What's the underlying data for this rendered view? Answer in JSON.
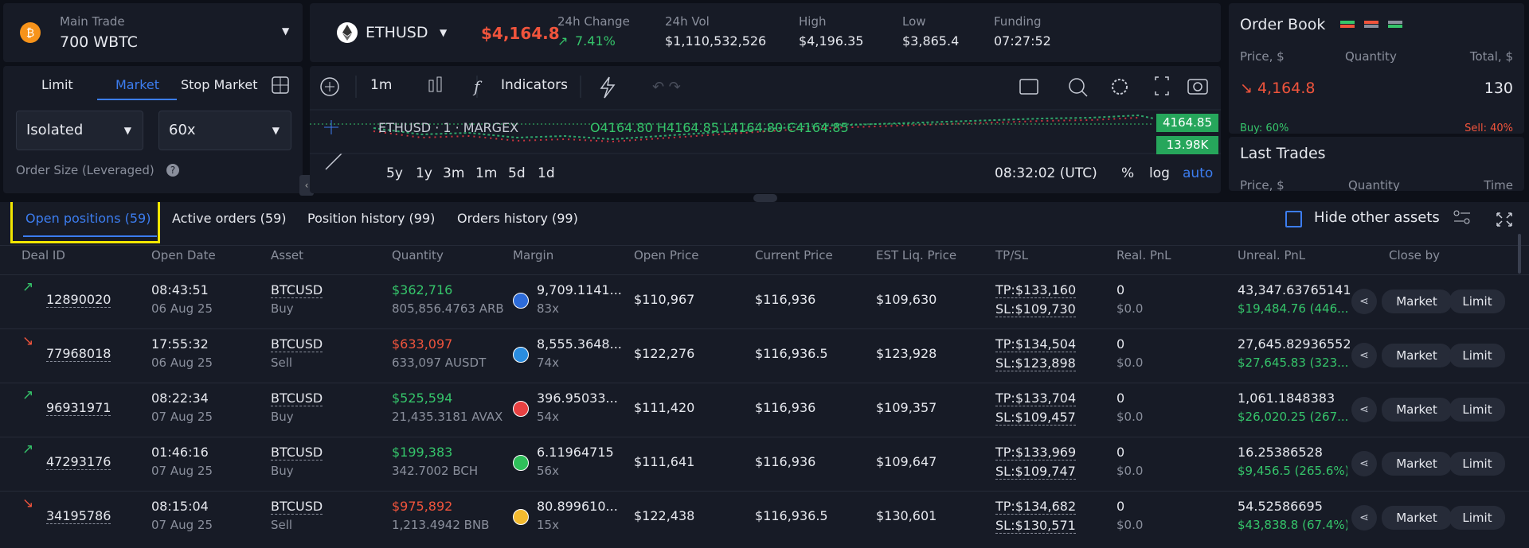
{
  "header": {
    "account_label": "Main Trade",
    "account_value": "700 WBTC",
    "symbol": "ETHUSD",
    "price": "$4,164.8",
    "stats": [
      {
        "label": "24h Change",
        "value": "7.41%"
      },
      {
        "label": "24h Vol",
        "value": "$1,110,532,526"
      },
      {
        "label": "High",
        "value": "$4,196.35"
      },
      {
        "label": "Low",
        "value": "$3,865.4"
      },
      {
        "label": "Funding",
        "value": "07:27:52"
      }
    ]
  },
  "order_form": {
    "tabs": [
      "Limit",
      "Market",
      "Stop Market"
    ],
    "margin_mode": "Isolated",
    "leverage": "60x",
    "order_size_label": "Order Size (Leveraged)"
  },
  "chart": {
    "interval": "1m",
    "indicators": "Indicators",
    "legend_symbol": "ETHUSD · 1 · MARGEX",
    "ohlc": "O4164.80 H4164.85 L4164.80 C4164.85",
    "price_tag": "4164.85",
    "volume_tag": "13.98K",
    "ranges": [
      "5y",
      "1y",
      "3m",
      "1m",
      "5d",
      "1d"
    ],
    "clock": "08:32:02 (UTC)",
    "scale_options": [
      "%",
      "log",
      "auto"
    ]
  },
  "order_book": {
    "title": "Order Book",
    "columns": [
      "Price, $",
      "Quantity",
      "Total, $"
    ],
    "last_price": "4,164.8",
    "last_total": "130",
    "buy": "Buy: 60%",
    "sell": "Sell: 40%",
    "last_trades": {
      "title": "Last Trades",
      "columns": [
        "Price, $",
        "Quantity",
        "Time"
      ]
    }
  },
  "position_tabs": [
    "Open positions (59)",
    "Active orders (59)",
    "Position history (99)",
    "Orders history (99)"
  ],
  "hide_other_assets": "Hide other assets",
  "table": {
    "columns": [
      "Deal ID",
      "Open Date",
      "Asset",
      "Quantity",
      "Margin",
      "Open Price",
      "Current Price",
      "EST Liq. Price",
      "TP/SL",
      "Real. PnL",
      "Unreal. PnL",
      "Close by"
    ],
    "actions": [
      "Market",
      "Limit"
    ],
    "rows": [
      {
        "deal_id": "12890020",
        "time": "08:43:51",
        "date": "06 Aug 25",
        "asset": "BTCUSD",
        "side": "Buy",
        "quantity_usd": "$362,716",
        "quantity_coin": "805,856.4763 ARB",
        "margin": "9,709.1141...",
        "leverage": "83x",
        "open_price": "$110,967",
        "current_price": "$116,936",
        "liq_price": "$109,630",
        "tp": "TP:$133,160",
        "sl": "SL:$109,730",
        "real_pnl": "0",
        "real_pnl_usd": "$0.0",
        "unreal_pnl": "43,347.63765141",
        "unreal_pnl_usd": "$19,484.76 (446...."
      },
      {
        "deal_id": "77968018",
        "time": "17:55:32",
        "date": "06 Aug 25",
        "asset": "BTCUSD",
        "side": "Sell",
        "quantity_usd": "$633,097",
        "quantity_coin": "633,097 AUSDT",
        "margin": "8,555.3648...",
        "leverage": "74x",
        "open_price": "$122,276",
        "current_price": "$116,936.5",
        "liq_price": "$123,928",
        "tp": "TP:$134,504",
        "sl": "SL:$123,898",
        "real_pnl": "0",
        "real_pnl_usd": "$0.0",
        "unreal_pnl": "27,645.82936552",
        "unreal_pnl_usd": "$27,645.83 (323...."
      },
      {
        "deal_id": "96931971",
        "time": "08:22:34",
        "date": "07 Aug 25",
        "asset": "BTCUSD",
        "side": "Buy",
        "quantity_usd": "$525,594",
        "quantity_coin": "21,435.3181 AVAX",
        "margin": "396.95033...",
        "leverage": "54x",
        "open_price": "$111,420",
        "current_price": "$116,936",
        "liq_price": "$109,357",
        "tp": "TP:$133,704",
        "sl": "SL:$109,457",
        "real_pnl": "0",
        "real_pnl_usd": "$0.0",
        "unreal_pnl": "1,061.1848383",
        "unreal_pnl_usd": "$26,020.25 (267...."
      },
      {
        "deal_id": "47293176",
        "time": "01:46:16",
        "date": "07 Aug 25",
        "asset": "BTCUSD",
        "side": "Buy",
        "quantity_usd": "$199,383",
        "quantity_coin": "342.7002 BCH",
        "margin": "6.11964715",
        "leverage": "56x",
        "open_price": "$111,641",
        "current_price": "$116,936",
        "liq_price": "$109,647",
        "tp": "TP:$133,969",
        "sl": "SL:$109,747",
        "real_pnl": "0",
        "real_pnl_usd": "$0.0",
        "unreal_pnl": "16.25386528",
        "unreal_pnl_usd": "$9,456.5 (265.6%)"
      },
      {
        "deal_id": "34195786",
        "time": "08:15:04",
        "date": "07 Aug 25",
        "asset": "BTCUSD",
        "side": "Sell",
        "quantity_usd": "$975,892",
        "quantity_coin": "1,213.4942 BNB",
        "margin": "80.899610...",
        "leverage": "15x",
        "open_price": "$122,438",
        "current_price": "$116,936.5",
        "liq_price": "$130,601",
        "tp": "TP:$134,682",
        "sl": "SL:$130,571",
        "real_pnl": "0",
        "real_pnl_usd": "$0.0",
        "unreal_pnl": "54.52586695",
        "unreal_pnl_usd": "$43,838.8 (67.4%)"
      }
    ]
  }
}
